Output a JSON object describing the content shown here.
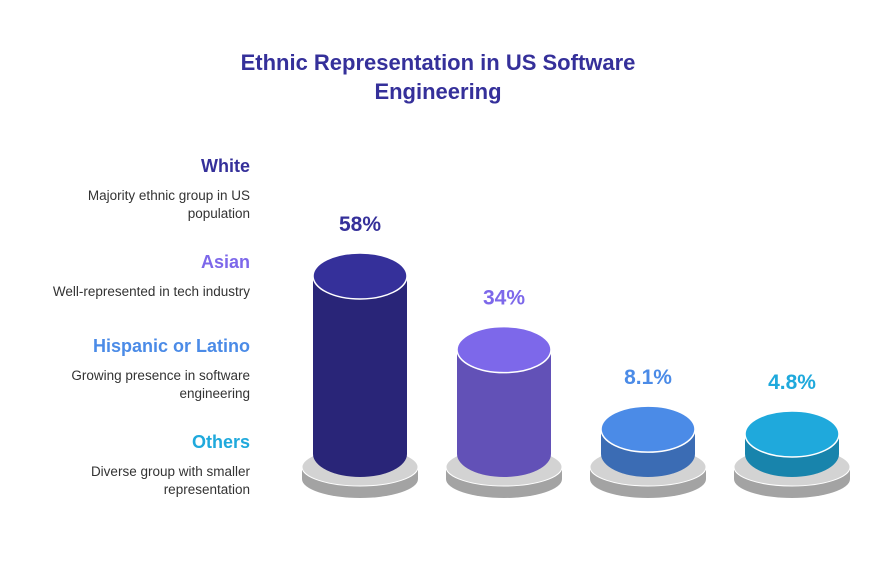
{
  "chart_data": {
    "type": "bar",
    "title_line1": "Ethnic Representation in US Software",
    "title_line2": "Engineering",
    "categories": [
      "White",
      "Asian",
      "Hispanic or Latino",
      "Others"
    ],
    "values": [
      58,
      34,
      8.1,
      4.8
    ],
    "value_labels": [
      "58%",
      "34%",
      "8.1%",
      "4.8%"
    ],
    "descriptions": [
      [
        "Majority ethnic group in US",
        "population"
      ],
      [
        "Well-represented in tech industry"
      ],
      [
        "Growing presence in software",
        "engineering"
      ],
      [
        "Diverse group with smaller",
        "representation"
      ]
    ],
    "colors": [
      "#35309a",
      "#7d68ea",
      "#4b8be7",
      "#1fa9dc"
    ],
    "bar_style": "3d-cylinder",
    "legend_position": "left"
  }
}
